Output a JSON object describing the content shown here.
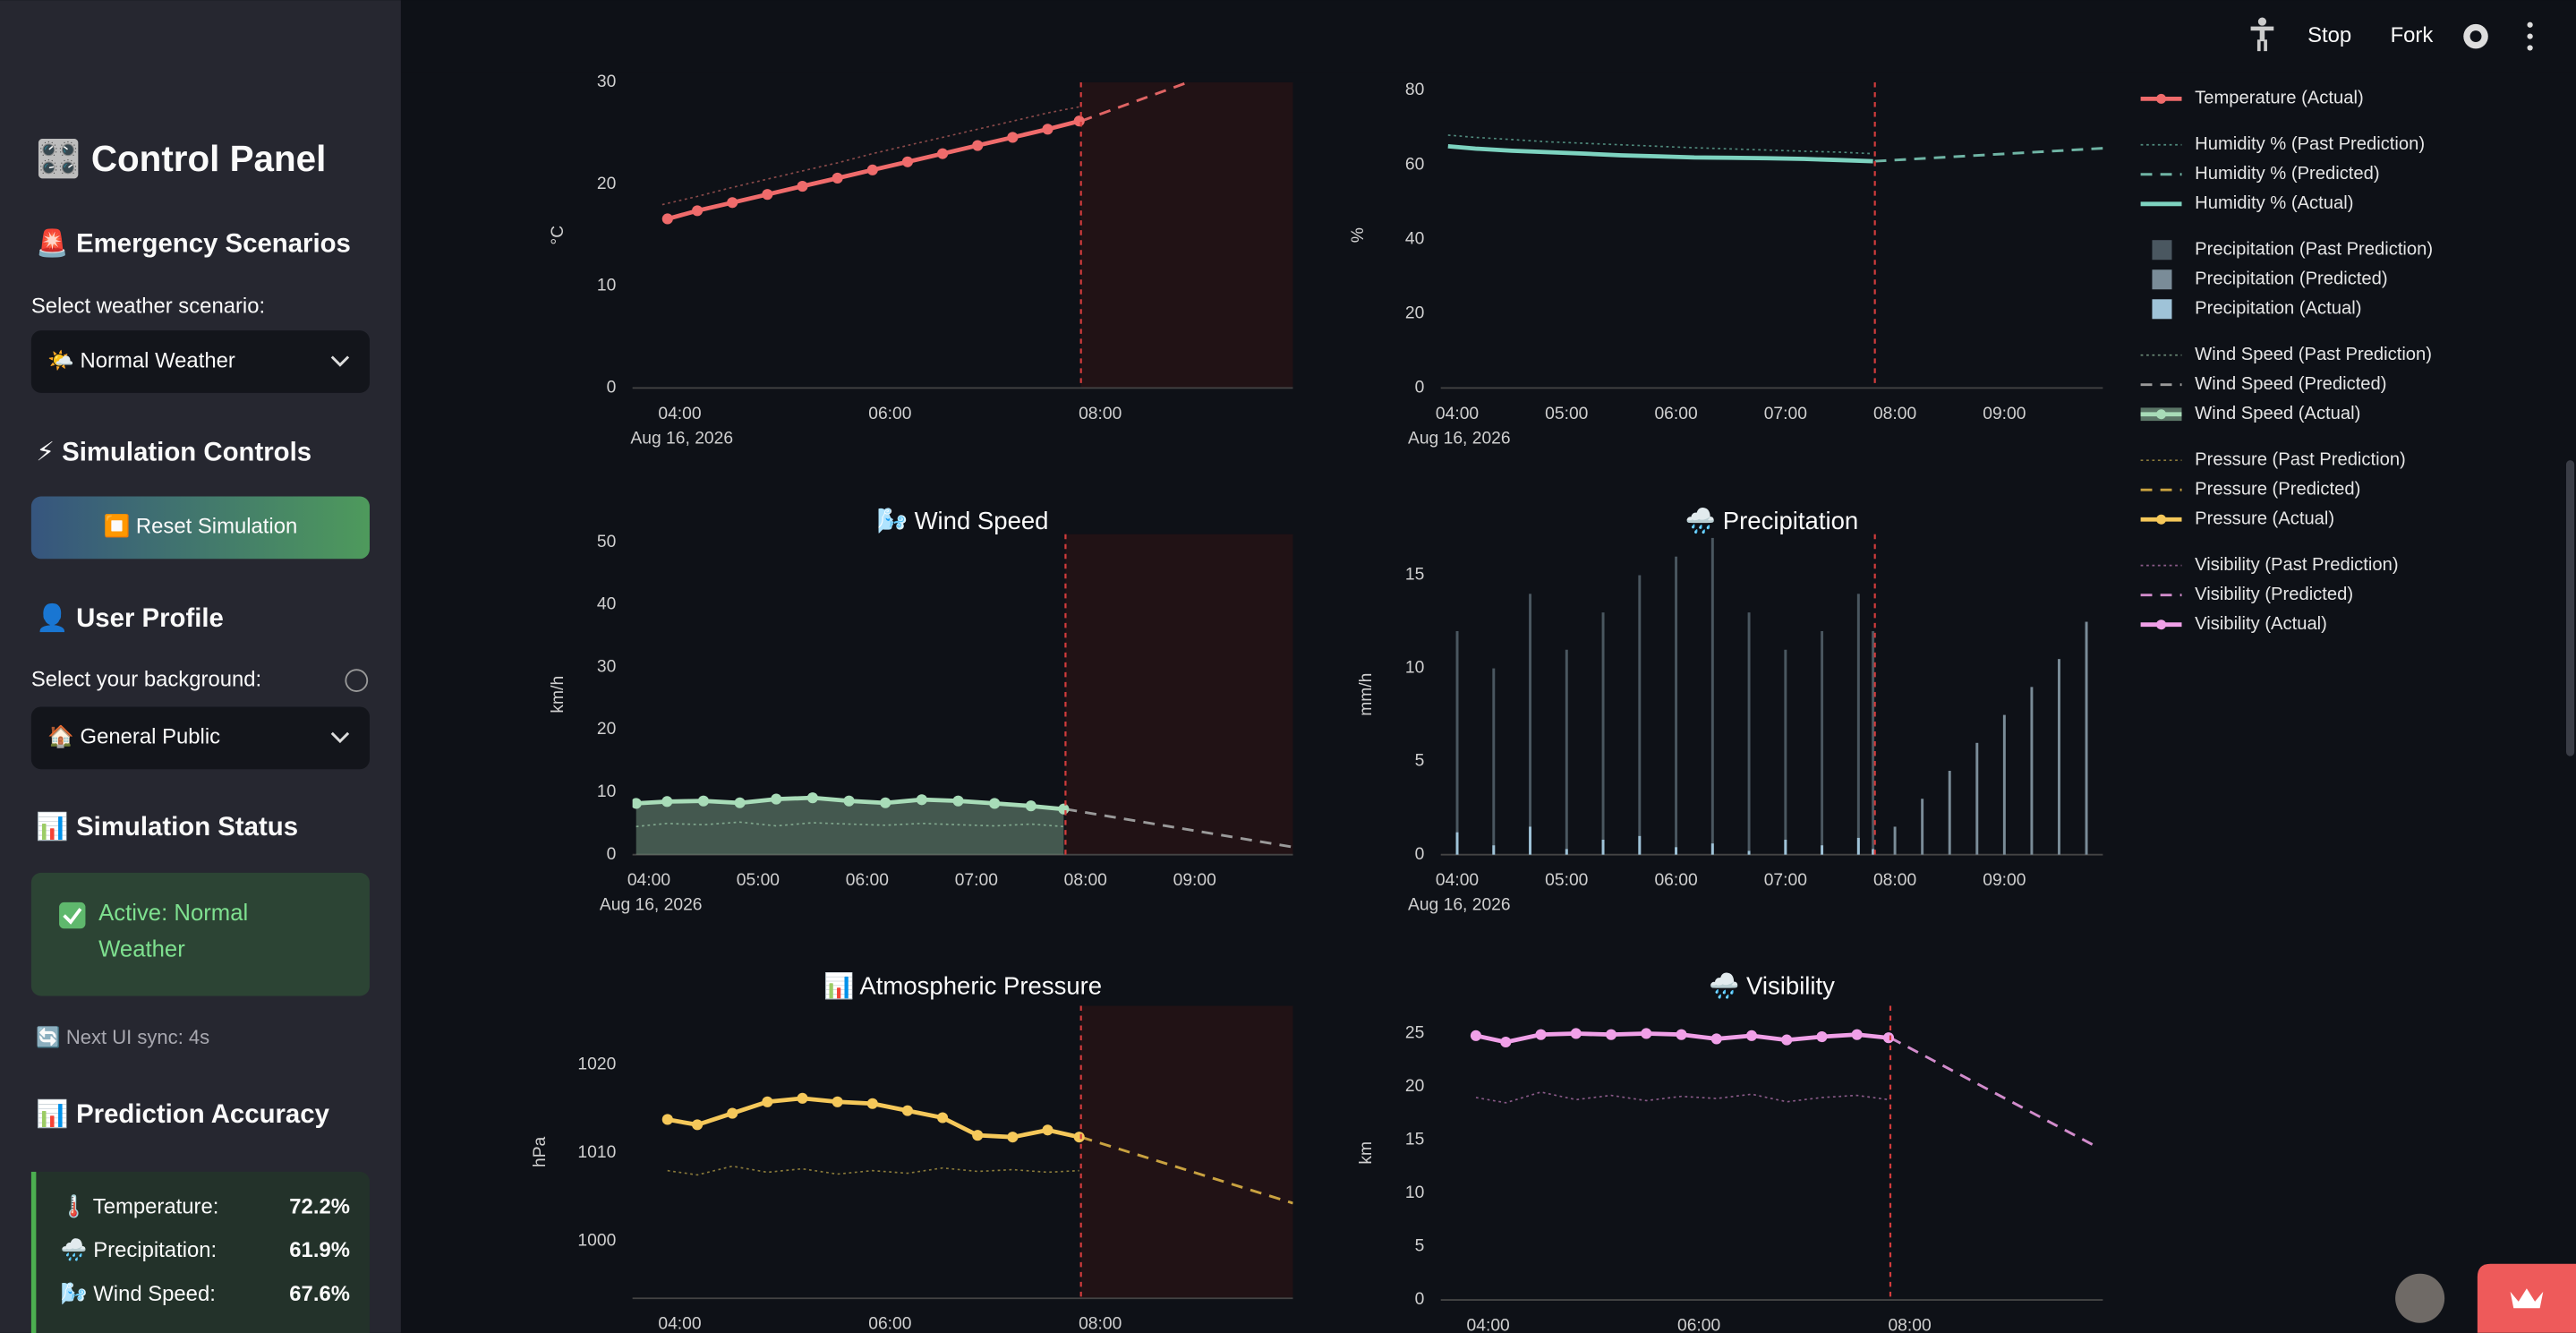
{
  "toolbar": {
    "stop": "Stop",
    "fork": "Fork"
  },
  "sidebar": {
    "title": "🎛️ Control Panel",
    "scenario": {
      "heading": "🚨 Emergency Scenarios",
      "label": "Select weather scenario:",
      "selected": "🌤️ Normal Weather"
    },
    "controls": {
      "heading": "⚡ Simulation Controls",
      "button": "⏹️ Reset Simulation"
    },
    "profile": {
      "heading": "👤 User Profile",
      "label": "Select your background:",
      "selected": "🏠 General Public"
    },
    "status": {
      "heading": "📊 Simulation Status",
      "text": "Active: Normal Weather",
      "sync": "🔄 Next UI sync: 4s"
    },
    "accuracy": {
      "heading": "📊 Prediction Accuracy",
      "rows": [
        [
          "🌡️ Temperature:",
          "72.2%"
        ],
        [
          "🌧️ Precipitation:",
          "61.9%"
        ],
        [
          "🌬️ Wind Speed:",
          "67.6%"
        ]
      ]
    }
  },
  "chart_data": [
    {
      "type": "line",
      "ylabel": "°C",
      "xlim": [
        "03:33",
        "09:50"
      ],
      "ylim": [
        0,
        30
      ],
      "yticks": [
        0,
        10,
        20,
        30
      ],
      "xticks": [
        "04:00",
        "06:00",
        "08:00"
      ],
      "xdate": "Aug 16, 2026",
      "now": "07:49",
      "shade_future": true,
      "series": [
        {
          "color": "#8a4a4a",
          "style": "dotted",
          "markers": false,
          "x": [
            "03:50",
            "04:10",
            "04:30",
            "04:50",
            "05:10",
            "05:30",
            "05:50",
            "06:10",
            "06:30",
            "06:50",
            "07:10",
            "07:30",
            "07:48"
          ],
          "values": [
            18.0,
            18.8,
            19.7,
            20.5,
            21.3,
            22.1,
            23.0,
            23.8,
            24.6,
            25.4,
            26.2,
            27.0,
            27.6
          ]
        },
        {
          "color": "#e06464",
          "style": "dashed",
          "markers": false,
          "x": [
            "07:49",
            "08:50"
          ],
          "values": [
            26.2,
            30.0
          ]
        },
        {
          "name": "Temperature (Actual)",
          "color": "#ef6b6b",
          "style": "solid",
          "markers": true,
          "x": [
            "03:53",
            "04:10",
            "04:30",
            "04:50",
            "05:10",
            "05:30",
            "05:50",
            "06:10",
            "06:30",
            "06:50",
            "07:10",
            "07:30",
            "07:48"
          ],
          "values": [
            16.6,
            17.4,
            18.2,
            19.0,
            19.8,
            20.6,
            21.4,
            22.2,
            23.0,
            23.8,
            24.6,
            25.4,
            26.2
          ]
        }
      ]
    },
    {
      "type": "line",
      "ylabel": "%",
      "xlim": [
        "03:51",
        "09:54"
      ],
      "ylim": [
        0,
        82.2
      ],
      "yticks": [
        0,
        20,
        40,
        60,
        80
      ],
      "xticks": [
        "04:00",
        "05:00",
        "06:00",
        "07:00",
        "08:00",
        "09:00"
      ],
      "xdate": "Aug 16, 2026",
      "now": "07:49",
      "shade_future": false,
      "series": [
        {
          "name": "Humidity % (Past Prediction)",
          "color": "#4f8a7c",
          "style": "dotted",
          "markers": false,
          "x": [
            "03:55",
            "04:10",
            "04:30",
            "04:50",
            "05:10",
            "05:30",
            "05:50",
            "06:10",
            "06:30",
            "06:50",
            "07:10",
            "07:30",
            "07:48"
          ],
          "values": [
            68,
            67.4,
            66.8,
            66.2,
            65.8,
            65.4,
            65,
            64.6,
            64.3,
            64,
            63.7,
            63.4,
            63.0
          ]
        },
        {
          "name": "Humidity % (Predicted)",
          "color": "#6fb5a5",
          "style": "dashed",
          "markers": false,
          "x": [
            "07:49",
            "09:54"
          ],
          "values": [
            61.0,
            64.5
          ]
        },
        {
          "name": "Humidity % (Actual)",
          "color": "#7dd3c0",
          "style": "solid",
          "markers": false,
          "x": [
            "03:55",
            "04:10",
            "04:30",
            "04:50",
            "05:10",
            "05:30",
            "05:50",
            "06:10",
            "06:30",
            "06:50",
            "07:10",
            "07:30",
            "07:48"
          ],
          "values": [
            65,
            64.4,
            63.8,
            63.4,
            63,
            62.6,
            62.3,
            62.0,
            61.9,
            61.8,
            61.6,
            61.3,
            61.0
          ]
        }
      ]
    },
    {
      "type": "bar",
      "title": "🌧️ Precipitation",
      "ylabel": "mm/h",
      "xlim": [
        "03:51",
        "09:54"
      ],
      "ylim": [
        0,
        17.2
      ],
      "yticks": [
        0,
        5,
        10,
        15
      ],
      "xticks": [
        "04:00",
        "05:00",
        "06:00",
        "07:00",
        "08:00",
        "09:00"
      ],
      "xdate": "Aug 16, 2026",
      "now": "07:49",
      "shade_future": false,
      "series": [
        {
          "name": "Precipitation (Past Prediction)",
          "color": "#4a5760",
          "style": "solid",
          "markers": false,
          "x": [
            "04:00",
            "04:20",
            "04:40",
            "05:00",
            "05:20",
            "05:40",
            "06:00",
            "06:20",
            "06:40",
            "07:00",
            "07:20",
            "07:40",
            "07:48"
          ],
          "values": [
            12,
            10,
            14,
            11,
            13,
            15,
            16,
            17,
            13,
            11,
            12,
            14,
            12
          ]
        },
        {
          "name": "Precipitation (Predicted)",
          "color": "#7a8c98",
          "style": "solid",
          "markers": false,
          "x": [
            "08:00",
            "08:15",
            "08:30",
            "08:45",
            "09:00",
            "09:15",
            "09:30",
            "09:45"
          ],
          "values": [
            1.5,
            3,
            4.5,
            6,
            7.5,
            9,
            10.5,
            12.5
          ]
        },
        {
          "name": "Precipitation (Actual)",
          "color": "#9fc3d8",
          "style": "solid",
          "markers": false,
          "x": [
            "04:00",
            "04:20",
            "04:40",
            "05:00",
            "05:20",
            "05:40",
            "06:00",
            "06:20",
            "06:40",
            "07:00",
            "07:20",
            "07:40",
            "07:48"
          ],
          "values": [
            1.2,
            0.5,
            1.5,
            0.3,
            0.8,
            1.0,
            0.4,
            0.6,
            0.2,
            0.8,
            0.5,
            0.9,
            0.3
          ]
        }
      ]
    },
    {
      "type": "line",
      "title": "🌬️ Wind Speed",
      "ylabel": "km/h",
      "xlim": [
        "03:51",
        "09:54"
      ],
      "ylim": [
        0,
        51.3
      ],
      "yticks": [
        0,
        10,
        20,
        30,
        40,
        50
      ],
      "xticks": [
        "04:00",
        "05:00",
        "06:00",
        "07:00",
        "08:00",
        "09:00"
      ],
      "xdate": "Aug 16, 2026",
      "now": "07:49",
      "shade_future": true,
      "series": [
        {
          "name": "Wind Speed (Past Prediction)",
          "color": "#6c8c78",
          "style": "dotted",
          "markers": false,
          "x": [
            "03:53",
            "04:10",
            "04:30",
            "04:50",
            "05:10",
            "05:30",
            "05:50",
            "06:10",
            "06:30",
            "06:50",
            "07:10",
            "07:30",
            "07:48"
          ],
          "values": [
            4.5,
            5.0,
            4.8,
            5.2,
            4.6,
            5.1,
            4.9,
            4.7,
            5.0,
            4.8,
            4.6,
            4.9,
            4.5
          ]
        },
        {
          "name": "Wind Speed (Predicted)",
          "color": "#9a9a9a",
          "style": "dashed",
          "markers": false,
          "x": [
            "07:49",
            "09:54"
          ],
          "values": [
            7.3,
            1.2
          ]
        },
        {
          "name": "Wind Speed (Actual)",
          "color": "#a8dcb8",
          "style": "solid",
          "markers": true,
          "fill": true,
          "x": [
            "03:53",
            "04:10",
            "04:30",
            "04:50",
            "05:10",
            "05:30",
            "05:50",
            "06:10",
            "06:30",
            "06:50",
            "07:10",
            "07:30",
            "07:48"
          ],
          "values": [
            8.2,
            8.5,
            8.6,
            8.3,
            8.9,
            9.1,
            8.6,
            8.3,
            8.8,
            8.6,
            8.2,
            7.8,
            7.3
          ]
        }
      ]
    },
    {
      "type": "line",
      "title": "📊 Atmospheric Pressure",
      "ylabel": "hPa",
      "xlim": [
        "03:33",
        "09:50"
      ],
      "ylim": [
        993.5,
        1026.7
      ],
      "yticks": [
        1000,
        1010,
        1020
      ],
      "xticks": [
        "04:00",
        "06:00",
        "08:00"
      ],
      "now": "07:49",
      "shade_future": true,
      "series": [
        {
          "name": "Pressure (Past Prediction)",
          "color": "#8a7a3a",
          "style": "dotted",
          "markers": false,
          "x": [
            "03:53",
            "04:10",
            "04:30",
            "04:50",
            "05:10",
            "05:30",
            "05:50",
            "06:10",
            "06:30",
            "06:50",
            "07:10",
            "07:30",
            "07:48"
          ],
          "values": [
            1008,
            1007.5,
            1008.5,
            1007.8,
            1008.2,
            1007.6,
            1008,
            1007.7,
            1008.3,
            1007.9,
            1008.1,
            1007.8,
            1008
          ]
        },
        {
          "name": "Pressure (Predicted)",
          "color": "#c9a240",
          "style": "dashed",
          "markers": false,
          "x": [
            "07:49",
            "09:50"
          ],
          "values": [
            1011.8,
            1004.3
          ]
        },
        {
          "name": "Pressure (Actual)",
          "color": "#f5c85a",
          "style": "solid",
          "markers": true,
          "x": [
            "03:53",
            "04:10",
            "04:30",
            "04:50",
            "05:10",
            "05:30",
            "05:50",
            "06:10",
            "06:30",
            "06:50",
            "07:10",
            "07:30",
            "07:48"
          ],
          "values": [
            1013.8,
            1013.2,
            1014.5,
            1015.8,
            1016.2,
            1015.8,
            1015.6,
            1014.8,
            1014.0,
            1012.0,
            1011.8,
            1012.6,
            1011.8
          ]
        }
      ]
    },
    {
      "type": "line",
      "title": "🌧️ Visibility",
      "ylabel": "km",
      "xlim": [
        "03:33",
        "09:50"
      ],
      "ylim": [
        0,
        27.6
      ],
      "yticks": [
        0,
        5,
        10,
        15,
        20,
        25
      ],
      "xticks": [
        "04:00",
        "06:00",
        "08:00"
      ],
      "now": "07:49",
      "shade_future": false,
      "series": [
        {
          "name": "Visibility (Past Prediction)",
          "color": "#8a5a88",
          "style": "dotted",
          "markers": false,
          "x": [
            "03:53",
            "04:10",
            "04:30",
            "04:50",
            "05:10",
            "05:30",
            "05:50",
            "06:10",
            "06:30",
            "06:50",
            "07:10",
            "07:30",
            "07:48"
          ],
          "values": [
            19,
            18.5,
            19.5,
            18.8,
            19.2,
            18.7,
            19.1,
            18.9,
            19.3,
            18.6,
            19,
            19.2,
            18.8
          ]
        },
        {
          "name": "Visibility (Predicted)",
          "color": "#d28ccc",
          "style": "dashed",
          "markers": false,
          "x": [
            "07:49",
            "09:45"
          ],
          "values": [
            24.6,
            14.5
          ]
        },
        {
          "name": "Visibility (Actual)",
          "color": "#f0a0e8",
          "style": "solid",
          "markers": true,
          "x": [
            "03:53",
            "04:10",
            "04:30",
            "04:50",
            "05:10",
            "05:30",
            "05:50",
            "06:10",
            "06:30",
            "06:50",
            "07:10",
            "07:30",
            "07:48"
          ],
          "values": [
            24.8,
            24.2,
            24.9,
            25.0,
            24.9,
            25.0,
            24.9,
            24.5,
            24.8,
            24.4,
            24.7,
            24.9,
            24.6
          ]
        }
      ]
    }
  ]
}
